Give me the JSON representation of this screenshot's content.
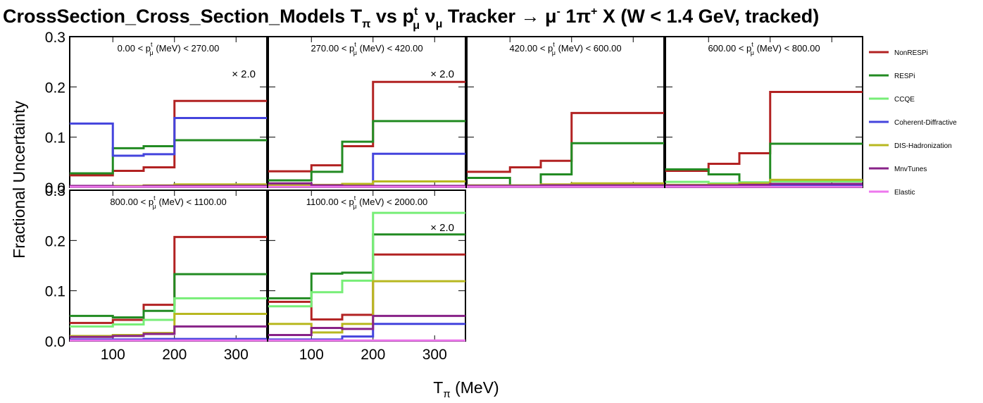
{
  "chart_data": {
    "type": "line",
    "title": {
      "pre": "CrossSection_Cross_Section_Models T",
      "sub1": "π",
      "mid": " vs p",
      "sup2": "t",
      "sub2": "μ",
      "tail": " ν",
      "sub3": "μ",
      "post": " Tracker → μ",
      "sup4": "-",
      "pi": " 1π",
      "sup5": "+",
      "end": " X  (W < 1.4 GeV, tracked)"
    },
    "xlabel": {
      "main": "T",
      "sub": "π",
      "unit": " (MeV)"
    },
    "ylabel": "Fractional Uncertainty",
    "xlim": [
      30,
      350
    ],
    "ylim": [
      0,
      0.3
    ],
    "x_ticks": [
      100,
      200,
      300
    ],
    "x_tick_labels": [
      "100",
      "200",
      "300"
    ],
    "y_ticks": [
      0,
      0.1,
      0.2,
      0.3
    ],
    "y_tick_labels": [
      "0.0",
      "0.1",
      "0.2",
      "0.3"
    ],
    "bin_edges": [
      30,
      100,
      150,
      200,
      350
    ],
    "series_styles": [
      {
        "name": "NonRESPi",
        "color": "#b22222"
      },
      {
        "name": "RESPi",
        "color": "#228b22"
      },
      {
        "name": "CCQE",
        "color": "#77ee77"
      },
      {
        "name": "Coherent-Diffractive",
        "color": "#4444dd"
      },
      {
        "name": "DIS-Hadronization",
        "color": "#b8b820"
      },
      {
        "name": "MnvTunes",
        "color": "#882288"
      },
      {
        "name": "Elastic",
        "color": "#ee77ee"
      }
    ],
    "legend_position": "right",
    "panels": [
      {
        "label": {
          "pre": "0.00 < p",
          "sup": "t",
          "sub": "μ",
          "post": " (MeV) < 270.00"
        },
        "scale": "× 2.0",
        "series": [
          {
            "name": "NonRESPi",
            "values": [
              0.024,
              0.033,
              0.04,
              0.172
            ]
          },
          {
            "name": "RESPi",
            "values": [
              0.028,
              0.078,
              0.082,
              0.094
            ]
          },
          {
            "name": "CCQE",
            "values": [
              0.001,
              0.001,
              0.001,
              0.001
            ]
          },
          {
            "name": "Coherent-Diffractive",
            "values": [
              0.127,
              0.063,
              0.066,
              0.138
            ]
          },
          {
            "name": "DIS-Hadronization",
            "values": [
              0.002,
              0.003,
              0.004,
              0.006
            ]
          },
          {
            "name": "MnvTunes",
            "values": [
              0.003,
              0.002,
              0.003,
              0.003
            ]
          },
          {
            "name": "Elastic",
            "values": [
              0.001,
              0.001,
              0.001,
              0.001
            ]
          }
        ]
      },
      {
        "label": {
          "pre": "270.00 < p",
          "sup": "t",
          "sub": "μ",
          "post": " (MeV) < 420.00"
        },
        "scale": "× 2.0",
        "series": [
          {
            "name": "NonRESPi",
            "values": [
              0.032,
              0.044,
              0.082,
              0.21
            ]
          },
          {
            "name": "RESPi",
            "values": [
              0.014,
              0.031,
              0.091,
              0.132
            ]
          },
          {
            "name": "CCQE",
            "values": [
              0.001,
              0.001,
              0.001,
              0.001
            ]
          },
          {
            "name": "Coherent-Diffractive",
            "values": [
              0.006,
              0.003,
              0.005,
              0.067
            ]
          },
          {
            "name": "DIS-Hadronization",
            "values": [
              0.004,
              0.005,
              0.007,
              0.012
            ]
          },
          {
            "name": "MnvTunes",
            "values": [
              0.008,
              0.004,
              0.003,
              0.003
            ]
          },
          {
            "name": "Elastic",
            "values": [
              0.001,
              0.001,
              0.001,
              0.001
            ]
          }
        ]
      },
      {
        "label": {
          "pre": "420.00 < p",
          "sup": "t",
          "sub": "μ",
          "post": " (MeV) < 600.00"
        },
        "scale": "",
        "series": [
          {
            "name": "NonRESPi",
            "values": [
              0.031,
              0.04,
              0.053,
              0.148
            ]
          },
          {
            "name": "RESPi",
            "values": [
              0.019,
              0.004,
              0.026,
              0.088
            ]
          },
          {
            "name": "CCQE",
            "values": [
              0.001,
              0.001,
              0.001,
              0.001
            ]
          },
          {
            "name": "Coherent-Diffractive",
            "values": [
              0.004,
              0.004,
              0.004,
              0.004
            ]
          },
          {
            "name": "DIS-Hadronization",
            "values": [
              0.004,
              0.004,
              0.006,
              0.008
            ]
          },
          {
            "name": "MnvTunes",
            "values": [
              0.003,
              0.003,
              0.004,
              0.004
            ]
          },
          {
            "name": "Elastic",
            "values": [
              0.001,
              0.001,
              0.001,
              0.001
            ]
          }
        ]
      },
      {
        "label": {
          "pre": "600.00 < p",
          "sup": "t",
          "sub": "μ",
          "post": " (MeV) < 800.00"
        },
        "scale": "",
        "series": [
          {
            "name": "NonRESPi",
            "values": [
              0.033,
              0.047,
              0.068,
              0.19
            ]
          },
          {
            "name": "RESPi",
            "values": [
              0.036,
              0.026,
              0.01,
              0.087
            ]
          },
          {
            "name": "CCQE",
            "values": [
              0.011,
              0.008,
              0.01,
              0.012
            ]
          },
          {
            "name": "Coherent-Diffractive",
            "values": [
              0.004,
              0.004,
              0.004,
              0.004
            ]
          },
          {
            "name": "DIS-Hadronization",
            "values": [
              0.005,
              0.006,
              0.008,
              0.015
            ]
          },
          {
            "name": "MnvTunes",
            "values": [
              0.004,
              0.004,
              0.005,
              0.007
            ]
          },
          {
            "name": "Elastic",
            "values": [
              0.001,
              0.001,
              0.001,
              0.001
            ]
          }
        ]
      },
      {
        "label": {
          "pre": "800.00 < p",
          "sup": "t",
          "sub": "μ",
          "post": " (MeV) < 1100.00"
        },
        "scale": "",
        "series": [
          {
            "name": "NonRESPi",
            "values": [
              0.036,
              0.042,
              0.072,
              0.207
            ]
          },
          {
            "name": "RESPi",
            "values": [
              0.05,
              0.047,
              0.06,
              0.133
            ]
          },
          {
            "name": "CCQE",
            "values": [
              0.029,
              0.033,
              0.042,
              0.085
            ]
          },
          {
            "name": "Coherent-Diffractive",
            "values": [
              0.003,
              0.003,
              0.004,
              0.004
            ]
          },
          {
            "name": "DIS-Hadronization",
            "values": [
              0.01,
              0.012,
              0.016,
              0.054
            ]
          },
          {
            "name": "MnvTunes",
            "values": [
              0.008,
              0.01,
              0.014,
              0.029
            ]
          },
          {
            "name": "Elastic",
            "values": [
              0.001,
              0.001,
              0.001,
              0.001
            ]
          }
        ]
      },
      {
        "label": {
          "pre": "1100.00 < p",
          "sup": "t",
          "sub": "μ",
          "post": " (MeV) < 2000.00"
        },
        "scale": "× 2.0",
        "series": [
          {
            "name": "NonRESPi",
            "values": [
              0.078,
              0.043,
              0.052,
              0.172
            ]
          },
          {
            "name": "RESPi",
            "values": [
              0.085,
              0.134,
              0.136,
              0.212
            ]
          },
          {
            "name": "CCQE",
            "values": [
              0.069,
              0.097,
              0.12,
              0.255
            ]
          },
          {
            "name": "Coherent-Diffractive",
            "values": [
              0.003,
              0.003,
              0.009,
              0.034
            ]
          },
          {
            "name": "DIS-Hadronization",
            "values": [
              0.034,
              0.017,
              0.034,
              0.119
            ]
          },
          {
            "name": "MnvTunes",
            "values": [
              0.012,
              0.026,
              0.024,
              0.05
            ]
          },
          {
            "name": "Elastic",
            "values": [
              0.001,
              0.001,
              0.001,
              0.001
            ]
          }
        ]
      }
    ]
  }
}
